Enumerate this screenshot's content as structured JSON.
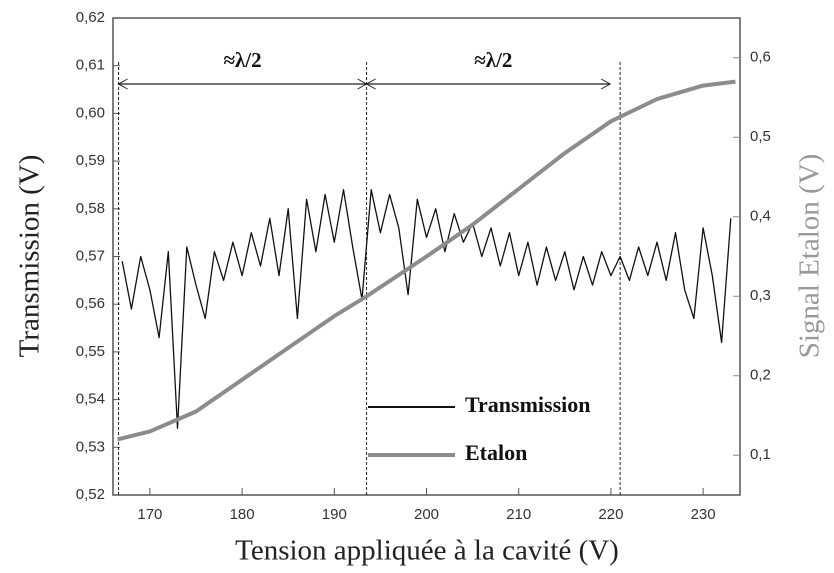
{
  "chart_data": {
    "type": "line",
    "xlabel": "Tension appliquée à la cavité (V)",
    "ylabel": "Transmission (V)",
    "y2label": "Signal Etalon (V)",
    "xlim": [
      166,
      234
    ],
    "xticks": [
      170,
      180,
      190,
      200,
      210,
      220,
      230
    ],
    "ylim": [
      0.52,
      0.62
    ],
    "yticks": [
      {
        "value": 0.52,
        "label": "0,52"
      },
      {
        "value": 0.53,
        "label": "0,53"
      },
      {
        "value": 0.54,
        "label": "0,54"
      },
      {
        "value": 0.55,
        "label": "0,55"
      },
      {
        "value": 0.56,
        "label": "0,56"
      },
      {
        "value": 0.57,
        "label": "0,57"
      },
      {
        "value": 0.58,
        "label": "0,58"
      },
      {
        "value": 0.59,
        "label": "0,59"
      },
      {
        "value": 0.6,
        "label": "0,60"
      },
      {
        "value": 0.61,
        "label": "0,61"
      },
      {
        "value": 0.62,
        "label": "0,62"
      }
    ],
    "y2lim": [
      0.05,
      0.65
    ],
    "y2ticks": [
      {
        "value": 0.1,
        "label": "0,1"
      },
      {
        "value": 0.2,
        "label": "0,2"
      },
      {
        "value": 0.3,
        "label": "0,3"
      },
      {
        "value": 0.4,
        "label": "0,4"
      },
      {
        "value": 0.5,
        "label": "0,5"
      },
      {
        "value": 0.6,
        "label": "0,6"
      }
    ],
    "vlines": [
      166.6,
      193.5,
      221
    ],
    "annotations": [
      "≈λ/2",
      "≈λ/2"
    ],
    "series": [
      {
        "name": "Transmission",
        "color": "#111111",
        "x": [
          167,
          168,
          169,
          170,
          171,
          172,
          173,
          174,
          175,
          176,
          177,
          178,
          179,
          180,
          181,
          182,
          183,
          184,
          185,
          186,
          187,
          188,
          189,
          190,
          191,
          192,
          193,
          194,
          195,
          196,
          197,
          198,
          199,
          200,
          201,
          202,
          203,
          204,
          205,
          206,
          207,
          208,
          209,
          210,
          211,
          212,
          213,
          214,
          215,
          216,
          217,
          218,
          219,
          220,
          221,
          222,
          223,
          224,
          225,
          226,
          227,
          228,
          229,
          230,
          231,
          232,
          233
        ],
        "values": [
          0.569,
          0.559,
          0.57,
          0.563,
          0.553,
          0.571,
          0.534,
          0.572,
          0.564,
          0.557,
          0.571,
          0.565,
          0.573,
          0.566,
          0.575,
          0.568,
          0.578,
          0.566,
          0.58,
          0.557,
          0.582,
          0.571,
          0.583,
          0.573,
          0.584,
          0.572,
          0.561,
          0.584,
          0.575,
          0.583,
          0.576,
          0.562,
          0.582,
          0.574,
          0.58,
          0.571,
          0.579,
          0.573,
          0.577,
          0.57,
          0.576,
          0.568,
          0.575,
          0.566,
          0.573,
          0.564,
          0.572,
          0.565,
          0.571,
          0.563,
          0.57,
          0.564,
          0.571,
          0.566,
          0.57,
          0.565,
          0.572,
          0.566,
          0.573,
          0.565,
          0.575,
          0.563,
          0.557,
          0.576,
          0.566,
          0.552,
          0.578
        ]
      },
      {
        "name": "Etalon",
        "color": "#8c8c8c",
        "axis": "y2",
        "x": [
          166.5,
          170,
          175,
          180,
          185,
          190,
          193.5,
          200,
          205,
          210,
          215,
          220,
          225,
          230,
          233.5
        ],
        "values": [
          0.12,
          0.13,
          0.155,
          0.195,
          0.235,
          0.275,
          0.3,
          0.35,
          0.39,
          0.435,
          0.48,
          0.52,
          0.548,
          0.565,
          0.57
        ]
      }
    ]
  }
}
